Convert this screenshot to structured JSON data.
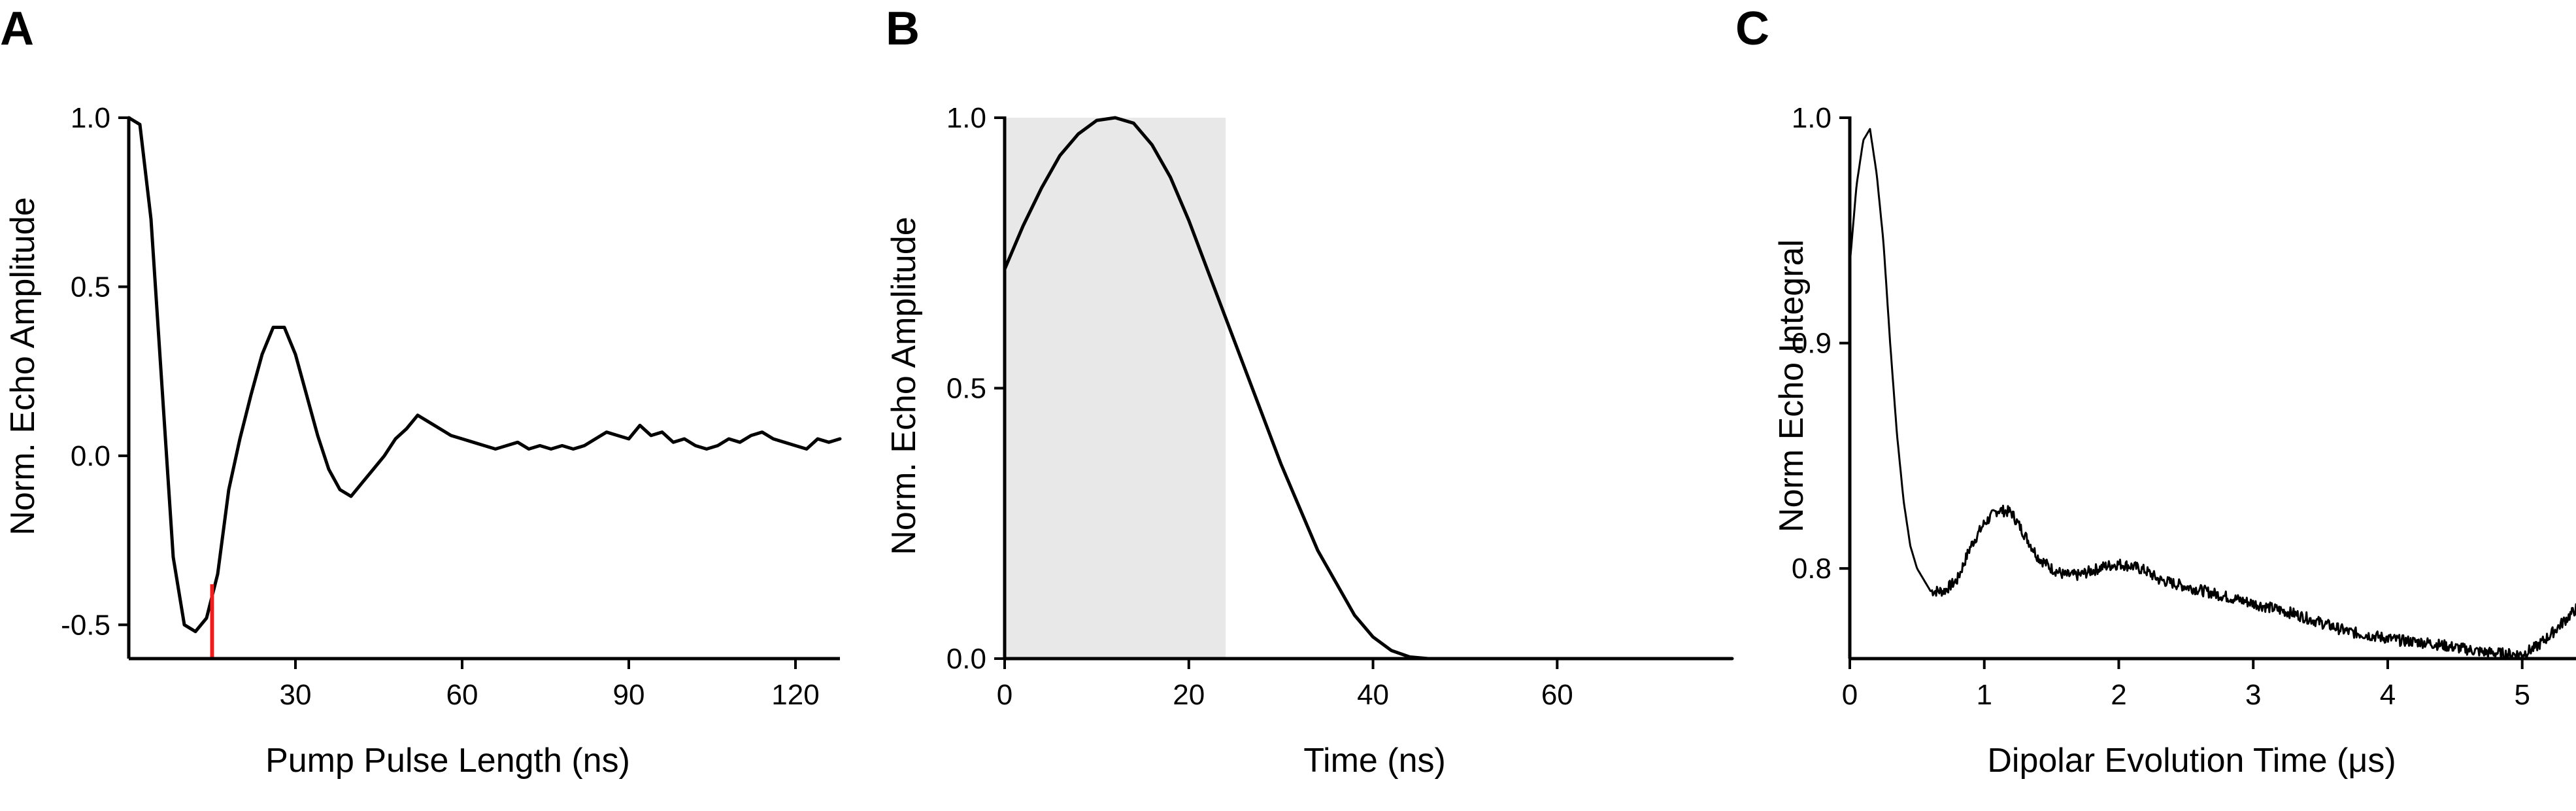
{
  "chart_data": [
    {
      "panel": "A",
      "type": "line",
      "xlabel": "Pump Pulse Length (ns)",
      "ylabel": "Norm. Echo Amplitude",
      "xlim": [
        0,
        128
      ],
      "ylim": [
        -0.6,
        1.0
      ],
      "xticks": [
        30,
        60,
        90,
        120
      ],
      "yticks": [
        1.0,
        0.5,
        0.0,
        -0.5
      ],
      "ytick_labels": [
        "1.0",
        "0.5",
        "0.0",
        "-0.5"
      ],
      "x": [
        0,
        2,
        4,
        6,
        8,
        10,
        12,
        14,
        16,
        18,
        20,
        22,
        24,
        26,
        28,
        30,
        32,
        34,
        36,
        38,
        40,
        42,
        44,
        46,
        48,
        50,
        52,
        54,
        56,
        58,
        60,
        62,
        64,
        66,
        68,
        70,
        72,
        74,
        76,
        78,
        80,
        82,
        84,
        86,
        88,
        90,
        92,
        94,
        96,
        98,
        100,
        102,
        104,
        106,
        108,
        110,
        112,
        114,
        116,
        118,
        120,
        122,
        124,
        126,
        128
      ],
      "y": [
        1.0,
        0.98,
        0.7,
        0.2,
        -0.3,
        -0.5,
        -0.52,
        -0.48,
        -0.35,
        -0.1,
        0.05,
        0.18,
        0.3,
        0.38,
        0.38,
        0.3,
        0.18,
        0.06,
        -0.04,
        -0.1,
        -0.12,
        -0.08,
        -0.04,
        0.0,
        0.05,
        0.08,
        0.12,
        0.1,
        0.08,
        0.06,
        0.05,
        0.04,
        0.03,
        0.02,
        0.03,
        0.04,
        0.02,
        0.03,
        0.02,
        0.03,
        0.02,
        0.03,
        0.05,
        0.07,
        0.06,
        0.05,
        0.09,
        0.06,
        0.07,
        0.04,
        0.05,
        0.03,
        0.02,
        0.03,
        0.05,
        0.04,
        0.06,
        0.07,
        0.05,
        0.04,
        0.03,
        0.02,
        0.05,
        0.04,
        0.05
      ],
      "marker": {
        "x": 15,
        "y_from": -0.6,
        "y_to": -0.38,
        "color": "#e8201f"
      },
      "series_color": "#000000"
    },
    {
      "panel": "B",
      "type": "line",
      "xlabel": "Time (ns)",
      "ylabel": "Norm. Echo Amplitude",
      "xlim": [
        0,
        79
      ],
      "ylim": [
        0,
        1.0
      ],
      "xticks": [
        0,
        20,
        40,
        60
      ],
      "yticks": [
        1.0,
        0.5,
        0.0
      ],
      "ytick_labels": [
        "1.0",
        "0.5",
        "0.0"
      ],
      "x": [
        0,
        2,
        4,
        6,
        8,
        10,
        12,
        14,
        16,
        18,
        20,
        22,
        24,
        26,
        28,
        30,
        32,
        34,
        36,
        38,
        40,
        42,
        44,
        46,
        47,
        50,
        55,
        60,
        65,
        70,
        75,
        79
      ],
      "y": [
        0.72,
        0.8,
        0.87,
        0.93,
        0.97,
        0.995,
        1.0,
        0.99,
        0.95,
        0.89,
        0.81,
        0.72,
        0.63,
        0.54,
        0.45,
        0.36,
        0.28,
        0.2,
        0.14,
        0.08,
        0.04,
        0.015,
        0.003,
        0.0,
        0.0,
        0.0,
        0.0,
        0.0,
        0.0,
        0.0,
        0.0,
        0.0
      ],
      "shaded_region": {
        "x_from": 0,
        "x_to": 24,
        "color": "#e8e8e8"
      },
      "series_color": "#000000"
    },
    {
      "panel": "C",
      "type": "line",
      "xlabel": "Dipolar Evolution Time (μs)",
      "ylabel": "Norm Echo Integral",
      "xlim": [
        0,
        5.4
      ],
      "ylim": [
        0.76,
        1.0
      ],
      "xticks": [
        0,
        1,
        2,
        3,
        4,
        5
      ],
      "yticks": [
        1.0,
        0.9,
        0.8
      ],
      "ytick_labels": [
        "1.0",
        "0.9",
        "0.8"
      ],
      "x": [
        0,
        0.05,
        0.1,
        0.15,
        0.2,
        0.25,
        0.3,
        0.35,
        0.4,
        0.45,
        0.5,
        0.55,
        0.6,
        0.7,
        0.8,
        0.9,
        1.0,
        1.1,
        1.2,
        1.3,
        1.4,
        1.5,
        1.6,
        1.7,
        1.8,
        1.9,
        2.0,
        2.1,
        2.2,
        2.3,
        2.5,
        2.7,
        2.9,
        3.1,
        3.3,
        3.5,
        3.7,
        3.9,
        4.1,
        4.3,
        4.5,
        4.7,
        4.9,
        5.0,
        5.1,
        5.2,
        5.3,
        5.4
      ],
      "y": [
        0.935,
        0.97,
        0.99,
        0.995,
        0.975,
        0.945,
        0.9,
        0.86,
        0.83,
        0.81,
        0.8,
        0.795,
        0.79,
        0.79,
        0.795,
        0.81,
        0.82,
        0.826,
        0.825,
        0.815,
        0.805,
        0.8,
        0.797,
        0.797,
        0.799,
        0.801,
        0.802,
        0.801,
        0.799,
        0.795,
        0.792,
        0.789,
        0.786,
        0.783,
        0.78,
        0.776,
        0.772,
        0.77,
        0.768,
        0.767,
        0.765,
        0.763,
        0.762,
        0.762,
        0.765,
        0.77,
        0.776,
        0.782
      ],
      "noise_amplitude": 0.0025,
      "series_color": "#000000"
    }
  ]
}
